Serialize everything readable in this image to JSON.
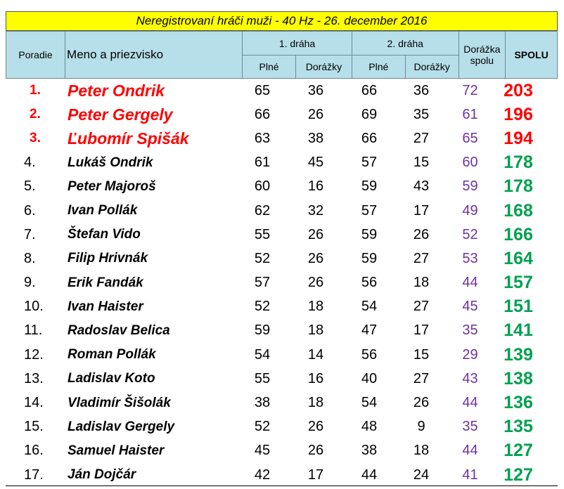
{
  "title": "Neregistrovaní hráči muži - 40 Hz - 26. december 2016",
  "headers": {
    "rank": "Poradie",
    "name": "Meno a priezvisko",
    "lane1": "1. dráha",
    "lane2": "2. dráha",
    "full": "Plné",
    "clear": "Dorážky",
    "clear_total": "Dorážka spolu",
    "total": "SPOLU"
  },
  "colors": {
    "title_bg": "#ffff00",
    "header_bg": "#b7dfe9",
    "podium": "#ff0000",
    "total": "#00a050",
    "clear_total": "#7030a0"
  },
  "rows": [
    {
      "rank": "1.",
      "name": "Peter Ondrik",
      "l1_full": "65",
      "l1_clear": "36",
      "l2_full": "66",
      "l2_clear": "36",
      "clear_total": "72",
      "total": "203"
    },
    {
      "rank": "2.",
      "name": "Peter Gergely",
      "l1_full": "66",
      "l1_clear": "26",
      "l2_full": "69",
      "l2_clear": "35",
      "clear_total": "61",
      "total": "196"
    },
    {
      "rank": "3.",
      "name": "Ľubomír Spišák",
      "l1_full": "63",
      "l1_clear": "38",
      "l2_full": "66",
      "l2_clear": "27",
      "clear_total": "65",
      "total": "194"
    },
    {
      "rank": "4.",
      "name": "Lukáš Ondrik",
      "l1_full": "61",
      "l1_clear": "45",
      "l2_full": "57",
      "l2_clear": "15",
      "clear_total": "60",
      "total": "178"
    },
    {
      "rank": "5.",
      "name": "Peter Majoroš",
      "l1_full": "60",
      "l1_clear": "16",
      "l2_full": "59",
      "l2_clear": "43",
      "clear_total": "59",
      "total": "178"
    },
    {
      "rank": "6.",
      "name": "Ivan Pollák",
      "l1_full": "62",
      "l1_clear": "32",
      "l2_full": "57",
      "l2_clear": "17",
      "clear_total": "49",
      "total": "168"
    },
    {
      "rank": "7.",
      "name": "Štefan Vido",
      "l1_full": "55",
      "l1_clear": "26",
      "l2_full": "59",
      "l2_clear": "26",
      "clear_total": "52",
      "total": "166"
    },
    {
      "rank": "8.",
      "name": "Filip Hrivnák",
      "l1_full": "52",
      "l1_clear": "26",
      "l2_full": "59",
      "l2_clear": "27",
      "clear_total": "53",
      "total": "164"
    },
    {
      "rank": "9.",
      "name": "Erik Fandák",
      "l1_full": "57",
      "l1_clear": "26",
      "l2_full": "56",
      "l2_clear": "18",
      "clear_total": "44",
      "total": "157"
    },
    {
      "rank": "10.",
      "name": "Ivan Haister",
      "l1_full": "52",
      "l1_clear": "18",
      "l2_full": "54",
      "l2_clear": "27",
      "clear_total": "45",
      "total": "151"
    },
    {
      "rank": "11.",
      "name": "Radoslav Belica",
      "l1_full": "59",
      "l1_clear": "18",
      "l2_full": "47",
      "l2_clear": "17",
      "clear_total": "35",
      "total": "141"
    },
    {
      "rank": "12.",
      "name": "Roman Pollák",
      "l1_full": "54",
      "l1_clear": "14",
      "l2_full": "56",
      "l2_clear": "15",
      "clear_total": "29",
      "total": "139"
    },
    {
      "rank": "13.",
      "name": "Ladislav Koto",
      "l1_full": "55",
      "l1_clear": "16",
      "l2_full": "40",
      "l2_clear": "27",
      "clear_total": "43",
      "total": "138"
    },
    {
      "rank": "14.",
      "name": "Vladimír Šišolák",
      "l1_full": "38",
      "l1_clear": "18",
      "l2_full": "54",
      "l2_clear": "26",
      "clear_total": "44",
      "total": "136"
    },
    {
      "rank": "15.",
      "name": "Ladislav Gergely",
      "l1_full": "52",
      "l1_clear": "26",
      "l2_full": "48",
      "l2_clear": "9",
      "clear_total": "35",
      "total": "135"
    },
    {
      "rank": "16.",
      "name": "Samuel Haister",
      "l1_full": "45",
      "l1_clear": "26",
      "l2_full": "38",
      "l2_clear": "18",
      "clear_total": "44",
      "total": "127"
    },
    {
      "rank": "17.",
      "name": "Ján Dojčár",
      "l1_full": "42",
      "l1_clear": "17",
      "l2_full": "44",
      "l2_clear": "24",
      "clear_total": "41",
      "total": "127"
    }
  ]
}
